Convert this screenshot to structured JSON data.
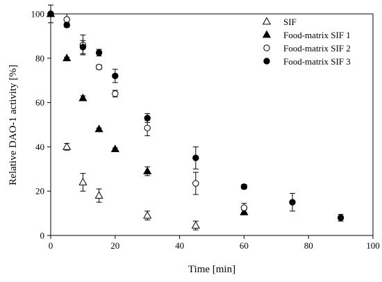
{
  "chart_data": {
    "type": "scatter",
    "title": "",
    "xlabel": "Time [min]",
    "ylabel": "Relative DAO-1 activity [%]",
    "xlim": [
      0,
      100
    ],
    "ylim": [
      0,
      100
    ],
    "xticks": [
      0,
      20,
      40,
      60,
      80,
      100
    ],
    "yticks": [
      0,
      20,
      40,
      60,
      80,
      100
    ],
    "grid": false,
    "legend_position": "top-right",
    "series": [
      {
        "name": "SIF",
        "marker": "triangle-open",
        "color": "#000000",
        "x": [
          0,
          5,
          10,
          15,
          30,
          45
        ],
        "y": [
          100,
          40,
          24,
          18,
          9,
          4.5
        ],
        "err": [
          0,
          1.5,
          4,
          3,
          2,
          2
        ]
      },
      {
        "name": "Food-matrix SIF 1",
        "marker": "triangle-filled",
        "color": "#000000",
        "x": [
          0,
          5,
          10,
          15,
          20,
          30,
          60
        ],
        "y": [
          100,
          80,
          62,
          48,
          39,
          29,
          10.5
        ],
        "err": [
          0,
          0.5,
          1,
          0.5,
          0.5,
          2,
          1
        ]
      },
      {
        "name": "Food-matrix SIF 2",
        "marker": "circle-open",
        "color": "#000000",
        "x": [
          0,
          5,
          10,
          15,
          20,
          30,
          45,
          60
        ],
        "y": [
          100,
          97.5,
          86,
          76,
          64,
          48.5,
          23.5,
          12.5
        ],
        "err": [
          0,
          2.5,
          4.5,
          1,
          1.5,
          3.5,
          5,
          2
        ]
      },
      {
        "name": "Food-matrix SIF 3",
        "marker": "circle-filled",
        "color": "#000000",
        "x": [
          0,
          5,
          10,
          15,
          20,
          30,
          45,
          60,
          75,
          90
        ],
        "y": [
          100,
          95,
          85,
          82.5,
          72,
          53,
          35,
          22,
          15,
          8
        ],
        "err": [
          4,
          1,
          3,
          1.5,
          3,
          2,
          5,
          1,
          4,
          1.5
        ]
      }
    ]
  }
}
